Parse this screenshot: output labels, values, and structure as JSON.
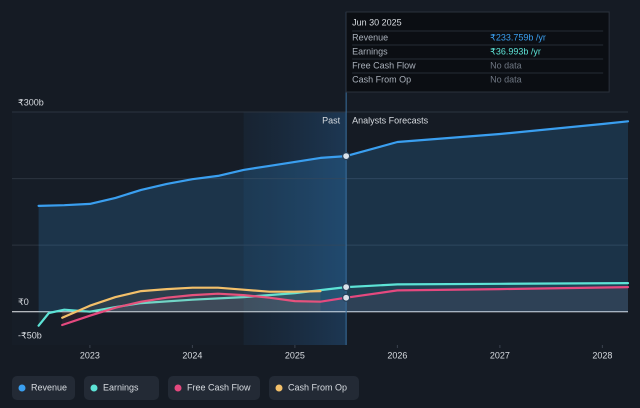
{
  "chart_data": {
    "type": "line",
    "xlim": [
      2022.24,
      2028.25
    ],
    "xticks": [
      2023,
      2024,
      2025,
      2026,
      2027,
      2028
    ],
    "ylim": [
      -50,
      300
    ],
    "yticks": [
      {
        "value": -50,
        "label": "-₹50b"
      },
      {
        "value": 0,
        "label": "₹0"
      },
      {
        "value": 300,
        "label": "₹300b"
      }
    ],
    "ygrid": [
      100,
      200,
      300
    ],
    "past_label": "Past",
    "forecast_label": "Analysts Forecasts",
    "past_until": 2025.5,
    "highlight_from": 2024.5,
    "series": [
      {
        "name": "Revenue",
        "color": "#3a9ff0",
        "area": true,
        "x": [
          2022.5,
          2022.75,
          2023.0,
          2023.25,
          2023.5,
          2023.75,
          2024.0,
          2024.25,
          2024.5,
          2024.75,
          2025.0,
          2025.25,
          2025.5,
          2026.0,
          2027.0,
          2028.0,
          2028.25
        ],
        "values": [
          159,
          160,
          162,
          171,
          183,
          192,
          199,
          204,
          213,
          219,
          225,
          231,
          233.759,
          255,
          267,
          282,
          286
        ]
      },
      {
        "name": "Earnings",
        "color": "#5de3d6",
        "x": [
          2022.5,
          2022.6,
          2022.75,
          2023.0,
          2023.25,
          2023.5,
          2024.0,
          2024.5,
          2025.0,
          2025.5,
          2026.0,
          2027.0,
          2028.25
        ],
        "values": [
          -21,
          -2,
          3,
          0,
          7,
          13,
          18,
          22,
          28,
          36.993,
          41,
          42,
          43
        ]
      },
      {
        "name": "Free Cash Flow",
        "color": "#e5497f",
        "x": [
          2022.73,
          2023.0,
          2023.25,
          2023.5,
          2023.75,
          2024.0,
          2024.25,
          2024.5,
          2024.75,
          2025.0,
          2025.25,
          2025.5,
          2026.0,
          2027.0,
          2028.25
        ],
        "values": [
          -20,
          -6,
          6,
          15,
          21,
          25,
          27,
          25,
          21,
          16,
          15,
          21,
          32,
          34,
          37
        ]
      },
      {
        "name": "Cash From Op",
        "color": "#f3c06a",
        "x": [
          2022.73,
          2023.0,
          2023.25,
          2023.5,
          2023.75,
          2024.0,
          2024.25,
          2024.5,
          2024.75,
          2025.0,
          2025.25
        ],
        "values": [
          -9,
          9,
          22,
          31,
          34,
          36,
          36,
          33,
          30,
          30,
          31
        ]
      }
    ],
    "tooltip": {
      "date": "Jun 30 2025",
      "rows": [
        {
          "label": "Revenue",
          "value": "₹233.759b /yr"
        },
        {
          "label": "Earnings",
          "value": "₹36.993b /yr"
        },
        {
          "label": "Free Cash Flow",
          "value": "No data"
        },
        {
          "label": "Cash From Op",
          "value": "No data"
        }
      ]
    }
  }
}
